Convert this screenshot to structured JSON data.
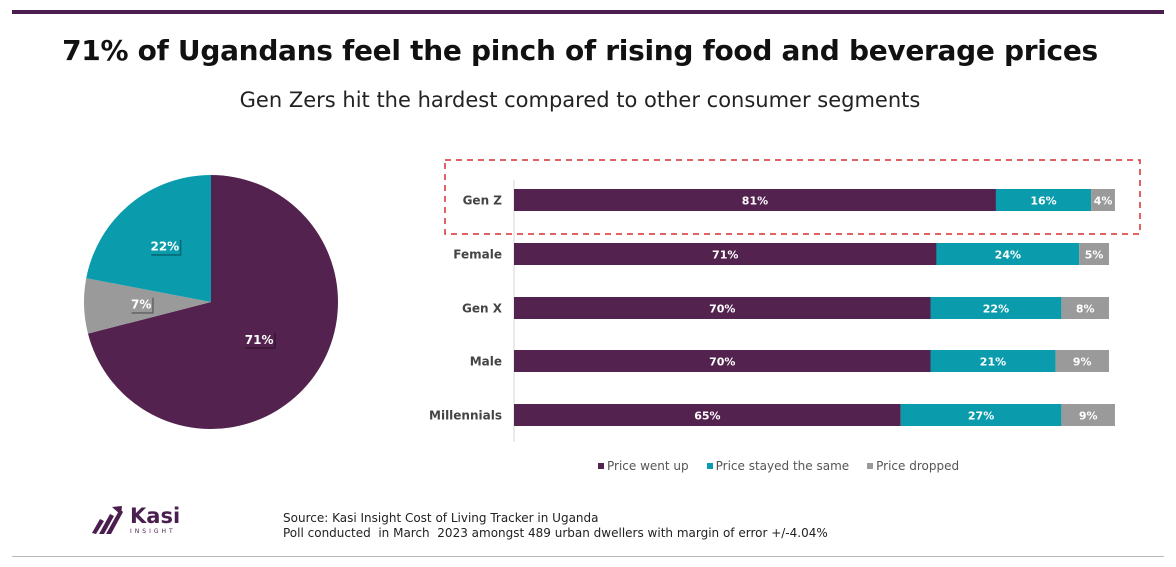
{
  "header": {
    "title": "71% of Ugandans feel the pinch of rising food and beverage prices",
    "subtitle": "Gen Zers hit the hardest compared to other consumer segments"
  },
  "colors": {
    "went_up": "#53224f",
    "same": "#0a9cad",
    "dropped": "#9a9a9a",
    "highlight": "#d62f2f"
  },
  "chart_data": [
    {
      "type": "pie",
      "title": "",
      "slices": [
        {
          "label": "Price went up",
          "value": 71,
          "display": "71%"
        },
        {
          "label": "Price dropped",
          "value": 7,
          "display": "7%"
        },
        {
          "label": "Price stayed the same",
          "value": 22,
          "display": "22%"
        }
      ]
    },
    {
      "type": "bar",
      "orientation": "horizontal",
      "stacked": true,
      "categories": [
        "Gen Z",
        "Female",
        "Gen X",
        "Male",
        "Millennials"
      ],
      "series": [
        {
          "name": "Price went up",
          "values": [
            81,
            71,
            70,
            70,
            65
          ]
        },
        {
          "name": "Price stayed the same",
          "values": [
            16,
            24,
            22,
            21,
            27
          ]
        },
        {
          "name": "Price dropped",
          "values": [
            4,
            5,
            8,
            9,
            9
          ]
        }
      ],
      "highlighted_category": "Gen Z",
      "legend_position": "bottom"
    }
  ],
  "legend": {
    "went_up": "Price went up",
    "same": "Price stayed the same",
    "dropped": "Price dropped"
  },
  "logo": {
    "name": "Kasi",
    "sub": "INSIGHT"
  },
  "footer": {
    "source": "Source: Kasi Insight Cost of Living Tracker in Uganda",
    "note": "Poll conducted  in March  2023 amongst 489 urban dwellers with margin of error +/-4.04%"
  }
}
